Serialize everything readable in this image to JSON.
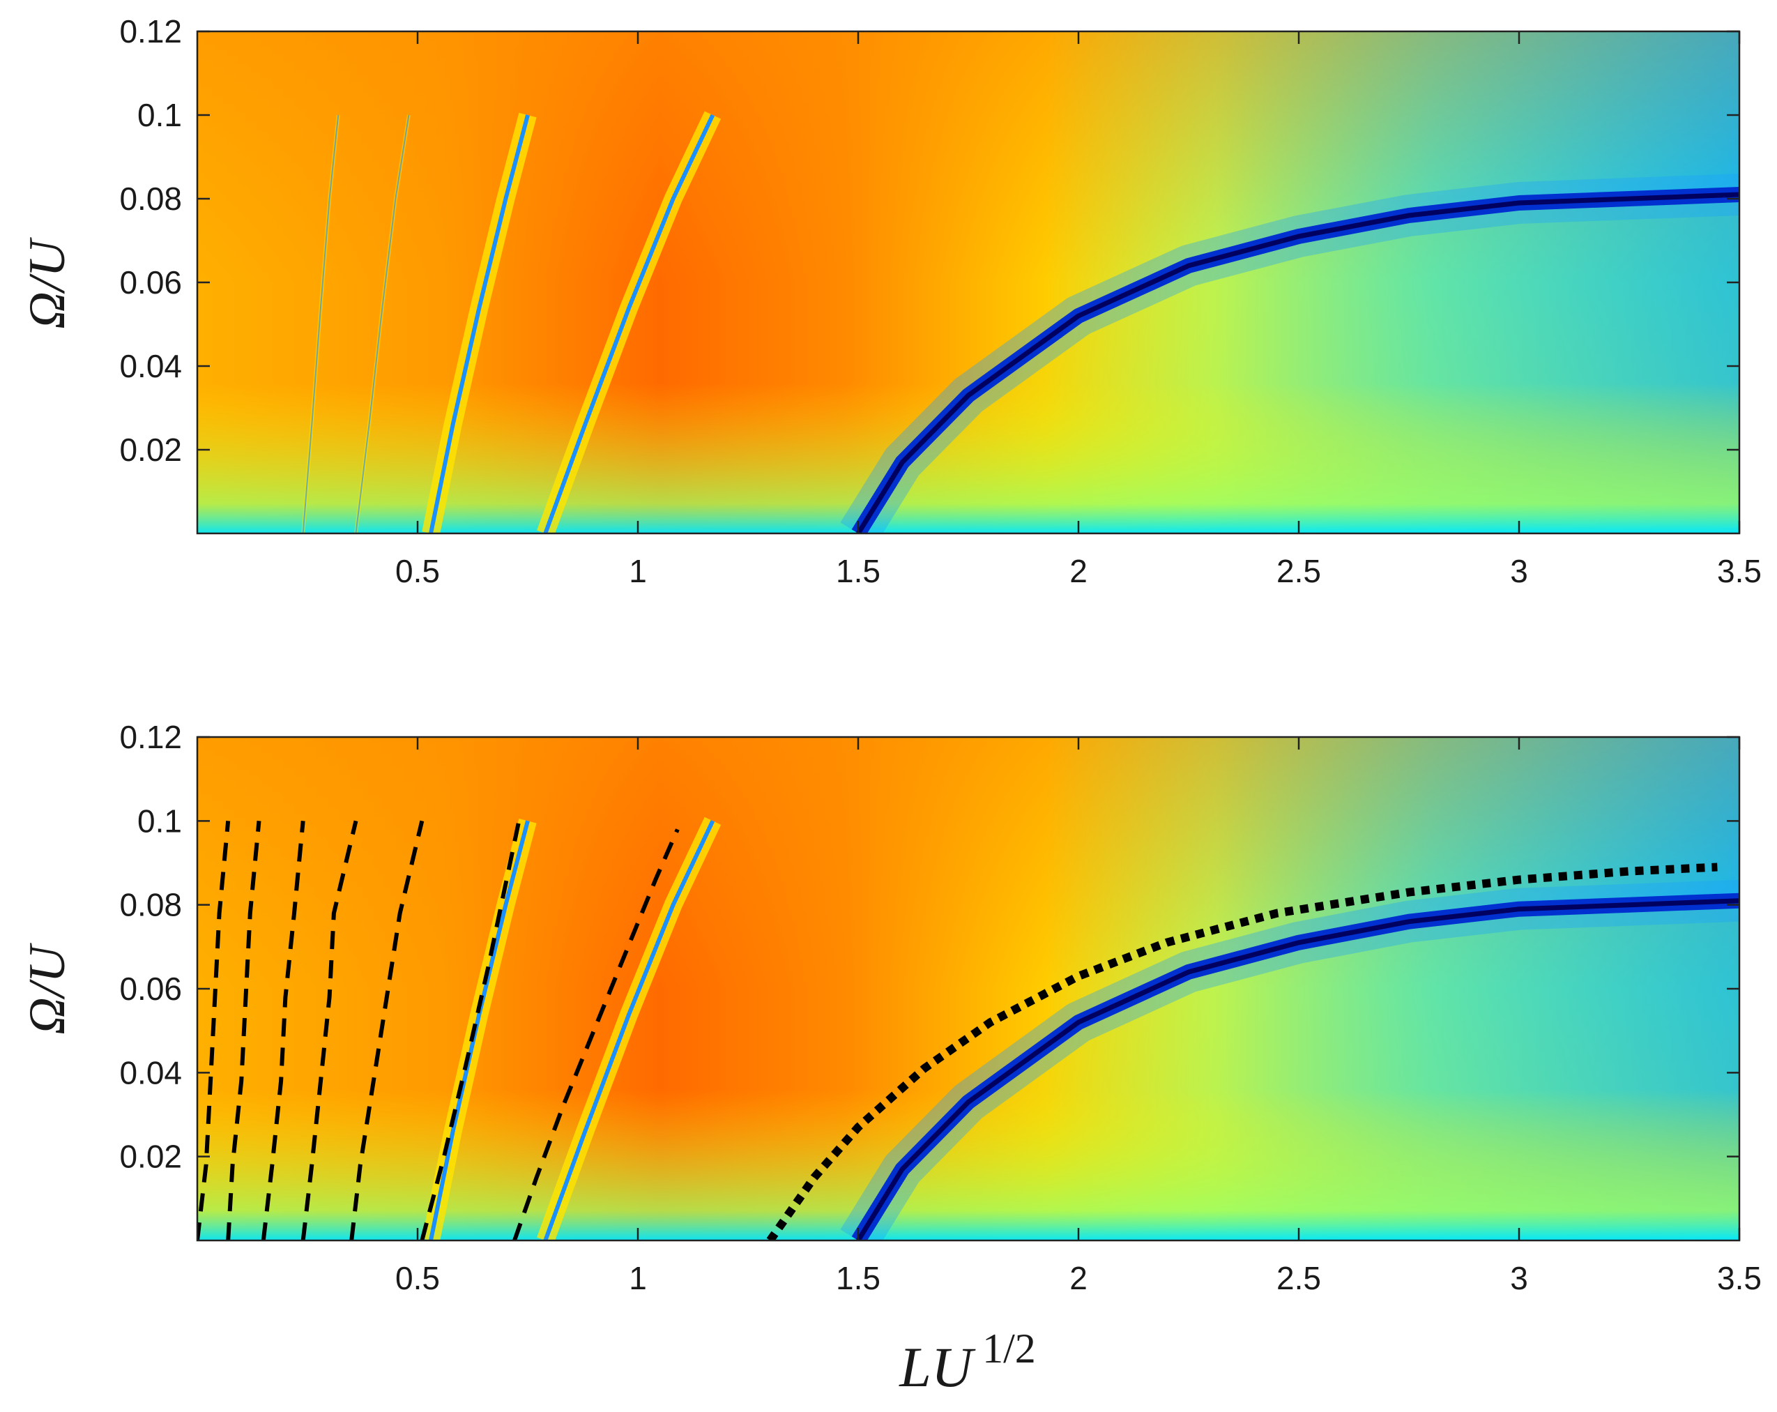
{
  "chart_data": [
    {
      "type": "heatmap",
      "panel": "top",
      "xlabel": "",
      "ylabel": "Ω/U",
      "xlim": [
        0,
        3.5
      ],
      "ylim": [
        0,
        0.12
      ],
      "xticks": [
        0.5,
        1,
        1.5,
        2,
        2.5,
        3,
        3.5
      ],
      "xtick_labels": [
        "0.5",
        "1",
        "1.5",
        "2",
        "2.5",
        "3",
        "3.5"
      ],
      "yticks": [
        0.02,
        0.04,
        0.06,
        0.08,
        0.1,
        0.12
      ],
      "ytick_labels": [
        "0.02",
        "0.04",
        "0.06",
        "0.08",
        "0.1",
        "0.12"
      ],
      "colormap": "jet",
      "features": {
        "main_resonance": {
          "x": [
            1.5,
            1.6,
            1.75,
            2.0,
            2.25,
            2.5,
            2.75,
            3.0,
            3.25,
            3.5
          ],
          "y": [
            0.0,
            0.017,
            0.033,
            0.052,
            0.064,
            0.071,
            0.076,
            0.079,
            0.08,
            0.081
          ]
        },
        "narrow_lines": [
          {
            "x": [
              0.79,
              0.88,
              0.98,
              1.08,
              1.17
            ],
            "y": [
              0.0,
              0.026,
              0.054,
              0.08,
              0.1
            ]
          },
          {
            "x": [
              0.53,
              0.58,
              0.64,
              0.7,
              0.75
            ],
            "y": [
              0.0,
              0.026,
              0.054,
              0.08,
              0.1
            ]
          },
          {
            "x": [
              0.36,
              0.39,
              0.42,
              0.45,
              0.48
            ],
            "y": [
              0.0,
              0.026,
              0.054,
              0.08,
              0.1
            ]
          },
          {
            "x": [
              0.24,
              0.26,
              0.28,
              0.3,
              0.32
            ],
            "y": [
              0.0,
              0.026,
              0.054,
              0.08,
              0.1
            ]
          }
        ]
      }
    },
    {
      "type": "heatmap",
      "panel": "bottom",
      "xlabel": "LU^{1/2}",
      "ylabel": "Ω/U",
      "xlim": [
        0,
        3.5
      ],
      "ylim": [
        0,
        0.12
      ],
      "xticks": [
        0.5,
        1,
        1.5,
        2,
        2.5,
        3,
        3.5
      ],
      "xtick_labels": [
        "0.5",
        "1",
        "1.5",
        "2",
        "2.5",
        "3",
        "3.5"
      ],
      "yticks": [
        0.02,
        0.04,
        0.06,
        0.08,
        0.1,
        0.12
      ],
      "ytick_labels": [
        "0.02",
        "0.04",
        "0.06",
        "0.08",
        "0.1",
        "0.12"
      ],
      "colormap": "jet",
      "features": {
        "main_resonance": {
          "x": [
            1.5,
            1.6,
            1.75,
            2.0,
            2.25,
            2.5,
            2.75,
            3.0,
            3.25,
            3.5
          ],
          "y": [
            0.0,
            0.017,
            0.033,
            0.052,
            0.064,
            0.071,
            0.076,
            0.079,
            0.08,
            0.081
          ]
        },
        "narrow_lines": [
          {
            "x": [
              0.79,
              0.88,
              0.98,
              1.08,
              1.17
            ],
            "y": [
              0.0,
              0.026,
              0.054,
              0.08,
              0.1
            ]
          },
          {
            "x": [
              0.53,
              0.58,
              0.64,
              0.7,
              0.75
            ],
            "y": [
              0.0,
              0.026,
              0.054,
              0.08,
              0.1
            ]
          }
        ]
      },
      "overlays": {
        "dotted_curve": {
          "style": "dotted",
          "color": "#000000",
          "x": [
            1.3,
            1.4,
            1.5,
            1.65,
            1.8,
            2.0,
            2.2,
            2.45,
            2.75,
            3.0,
            3.25,
            3.45
          ],
          "y": [
            0.0,
            0.015,
            0.027,
            0.041,
            0.052,
            0.063,
            0.071,
            0.078,
            0.083,
            0.086,
            0.088,
            0.089
          ]
        },
        "dashed_curves": [
          {
            "style": "dashed",
            "color": "#000000",
            "x": [
              0.72,
              0.77,
              0.83,
              0.9,
              0.97,
              1.04,
              1.09
            ],
            "y": [
              0.0,
              0.015,
              0.032,
              0.05,
              0.068,
              0.086,
              0.098
            ]
          },
          {
            "style": "dashed",
            "color": "#000000",
            "x": [
              0.51,
              0.56,
              0.61,
              0.66,
              0.71,
              0.73
            ],
            "y": [
              0.0,
              0.02,
              0.042,
              0.065,
              0.09,
              0.1
            ]
          },
          {
            "style": "dashed",
            "color": "#000000",
            "x": [
              0.35,
              0.37,
              0.4,
              0.43,
              0.46,
              0.51
            ],
            "y": [
              0.0,
              0.018,
              0.038,
              0.058,
              0.078,
              0.1
            ]
          },
          {
            "style": "dashed",
            "color": "#000000",
            "x": [
              0.24,
              0.26,
              0.28,
              0.3,
              0.31,
              0.36
            ],
            "y": [
              0.0,
              0.018,
              0.038,
              0.058,
              0.078,
              0.1
            ]
          },
          {
            "style": "dashed",
            "color": "#000000",
            "x": [
              0.15,
              0.17,
              0.19,
              0.2,
              0.22,
              0.24
            ],
            "y": [
              0.0,
              0.018,
              0.038,
              0.058,
              0.078,
              0.1
            ]
          },
          {
            "style": "dashed",
            "color": "#000000",
            "x": [
              0.07,
              0.08,
              0.1,
              0.11,
              0.12,
              0.14
            ],
            "y": [
              0.0,
              0.018,
              0.038,
              0.058,
              0.078,
              0.1
            ]
          },
          {
            "style": "dashed",
            "color": "#000000",
            "x": [
              0.0,
              0.02,
              0.03,
              0.04,
              0.05,
              0.07
            ],
            "y": [
              0.0,
              0.018,
              0.038,
              0.058,
              0.078,
              0.1
            ]
          }
        ]
      }
    }
  ]
}
